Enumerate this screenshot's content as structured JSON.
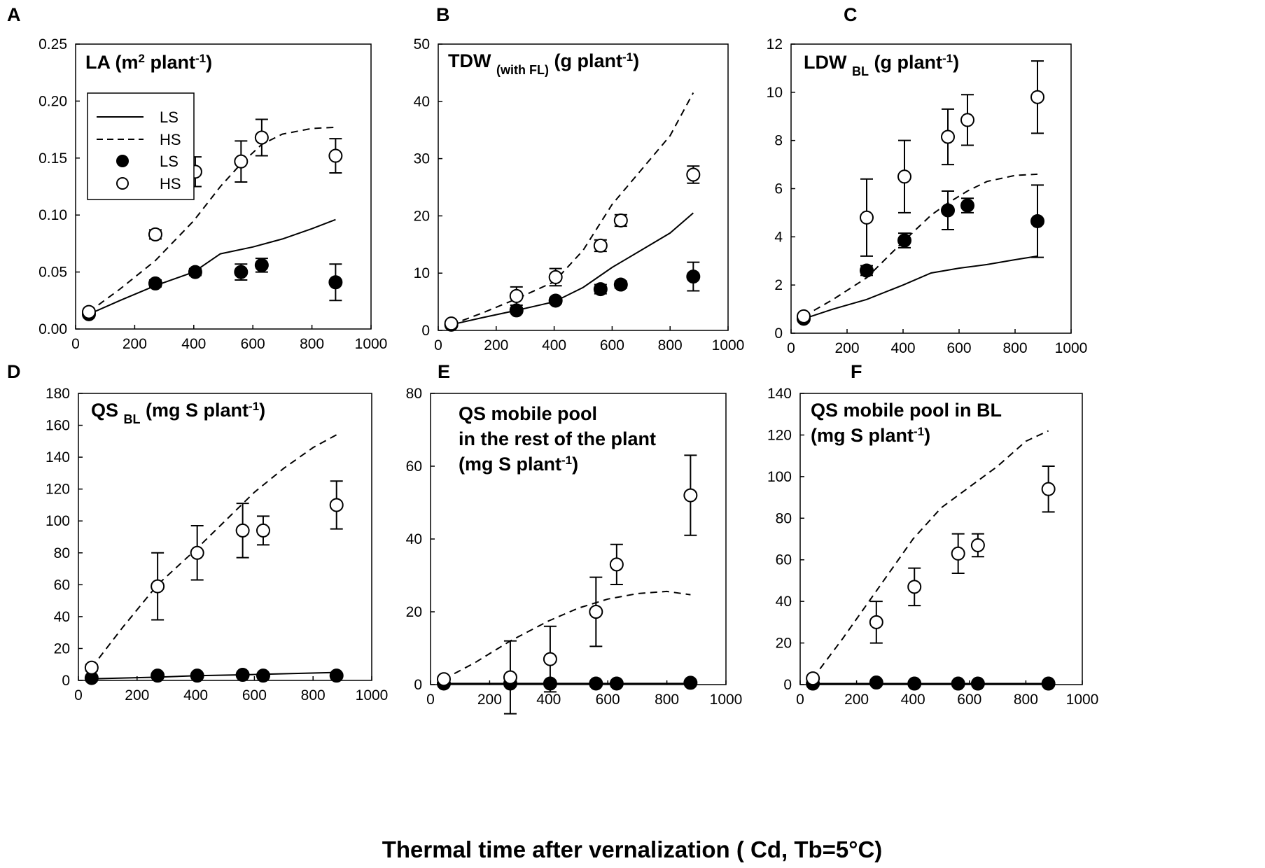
{
  "figure": {
    "xlabel": "Thermal time after vernalization ( Cd, Tb=5°C)"
  },
  "legend": {
    "items": [
      {
        "label": "LS",
        "kind": "line",
        "style": "solid"
      },
      {
        "label": "HS",
        "kind": "line",
        "style": "dashed"
      },
      {
        "label": "LS",
        "kind": "marker",
        "style": "filled"
      },
      {
        "label": "HS",
        "kind": "marker",
        "style": "open"
      }
    ]
  },
  "chart_data": [
    {
      "panel": "A",
      "type": "line",
      "title": "LA (m² plant⁻¹)",
      "xlim": [
        0,
        1000
      ],
      "ylim": [
        0,
        0.25
      ],
      "xticks": [
        "0",
        "200",
        "400",
        "600",
        "800",
        "1000"
      ],
      "yticks": [
        "0.00",
        "0.05",
        "0.10",
        "0.15",
        "0.20",
        "0.25"
      ],
      "lines": [
        {
          "name": "LS",
          "style": "solid",
          "x": [
            45,
            150,
            270,
            400,
            490,
            600,
            700,
            800,
            880
          ],
          "y": [
            0.013,
            0.025,
            0.038,
            0.05,
            0.066,
            0.072,
            0.079,
            0.088,
            0.096
          ]
        },
        {
          "name": "HS",
          "style": "dashed",
          "x": [
            45,
            150,
            270,
            400,
            490,
            560,
            630,
            700,
            800,
            880
          ],
          "y": [
            0.015,
            0.035,
            0.06,
            0.095,
            0.125,
            0.145,
            0.162,
            0.171,
            0.176,
            0.177
          ]
        }
      ],
      "points": [
        {
          "name": "LS",
          "fill": "filled",
          "x": [
            45,
            270,
            405,
            560,
            630,
            880
          ],
          "y": [
            0.013,
            0.04,
            0.05,
            0.05,
            0.056,
            0.041
          ],
          "err": [
            0.002,
            0.003,
            0.003,
            0.007,
            0.006,
            0.016
          ]
        },
        {
          "name": "HS",
          "fill": "open",
          "x": [
            45,
            270,
            405,
            560,
            630,
            880
          ],
          "y": [
            0.015,
            0.083,
            0.138,
            0.147,
            0.168,
            0.152
          ],
          "err": [
            0.002,
            0.004,
            0.013,
            0.018,
            0.016,
            0.015
          ]
        }
      ]
    },
    {
      "panel": "B",
      "type": "line",
      "title": "TDW (with FL) (g plant⁻¹)",
      "xlim": [
        0,
        1000
      ],
      "ylim": [
        0,
        50
      ],
      "xticks": [
        "0",
        "200",
        "400",
        "600",
        "800",
        "1000"
      ],
      "yticks": [
        "0",
        "10",
        "20",
        "30",
        "40",
        "50"
      ],
      "lines": [
        {
          "name": "LS",
          "style": "solid",
          "x": [
            45,
            150,
            270,
            400,
            500,
            600,
            700,
            800,
            880
          ],
          "y": [
            1,
            2.2,
            3.5,
            5,
            7.5,
            11,
            14,
            17,
            20.5
          ]
        },
        {
          "name": "HS",
          "style": "dashed",
          "x": [
            45,
            150,
            270,
            400,
            500,
            600,
            700,
            800,
            880
          ],
          "y": [
            1,
            3,
            5.5,
            8.5,
            14,
            22,
            28,
            34,
            41.5
          ]
        }
      ],
      "points": [
        {
          "name": "LS",
          "fill": "filled",
          "x": [
            45,
            270,
            405,
            560,
            630,
            880
          ],
          "y": [
            1,
            3.5,
            5.2,
            7.2,
            8,
            9.4
          ],
          "err": [
            0.3,
            0.5,
            0.5,
            0.8,
            0.6,
            2.5
          ]
        },
        {
          "name": "HS",
          "fill": "open",
          "x": [
            45,
            270,
            405,
            560,
            630,
            880
          ],
          "y": [
            1.2,
            6,
            9.3,
            14.8,
            19.2,
            27.2
          ],
          "err": [
            0.3,
            1.6,
            1.5,
            1.0,
            1.0,
            1.5
          ]
        }
      ]
    },
    {
      "panel": "C",
      "type": "line",
      "title": "LDW BL (g plant⁻¹)",
      "xlim": [
        0,
        1000
      ],
      "ylim": [
        0,
        12
      ],
      "xticks": [
        "0",
        "200",
        "400",
        "600",
        "800",
        "1000"
      ],
      "yticks": [
        "0",
        "2",
        "4",
        "6",
        "8",
        "10",
        "12"
      ],
      "lines": [
        {
          "name": "LS",
          "style": "solid",
          "x": [
            45,
            150,
            270,
            400,
            500,
            600,
            700,
            800,
            880
          ],
          "y": [
            0.6,
            1.0,
            1.4,
            2.0,
            2.5,
            2.7,
            2.85,
            3.05,
            3.2
          ]
        },
        {
          "name": "HS",
          "style": "dashed",
          "x": [
            45,
            150,
            270,
            400,
            500,
            560,
            630,
            700,
            800,
            880
          ],
          "y": [
            0.7,
            1.4,
            2.3,
            3.8,
            4.9,
            5.4,
            5.9,
            6.3,
            6.55,
            6.6
          ]
        }
      ],
      "points": [
        {
          "name": "LS",
          "fill": "filled",
          "x": [
            45,
            270,
            405,
            560,
            630,
            880
          ],
          "y": [
            0.6,
            2.6,
            3.85,
            5.1,
            5.3,
            4.65
          ],
          "err": [
            0.1,
            0.2,
            0.3,
            0.8,
            0.3,
            1.5
          ]
        },
        {
          "name": "HS",
          "fill": "open",
          "x": [
            45,
            270,
            405,
            560,
            630,
            880
          ],
          "y": [
            0.7,
            4.8,
            6.5,
            8.15,
            8.85,
            9.8
          ],
          "err": [
            0.1,
            1.6,
            1.5,
            1.15,
            1.05,
            1.5
          ]
        }
      ]
    },
    {
      "panel": "D",
      "type": "line",
      "title": "QS BL (mg S plant⁻¹)",
      "xlim": [
        0,
        1000
      ],
      "ylim": [
        0,
        180
      ],
      "xticks": [
        "0",
        "200",
        "400",
        "600",
        "800",
        "1000"
      ],
      "yticks": [
        "0",
        "20",
        "40",
        "60",
        "80",
        "100",
        "120",
        "140",
        "160",
        "180"
      ],
      "lines": [
        {
          "name": "LS",
          "style": "solid",
          "x": [
            45,
            270,
            405,
            560,
            630,
            880
          ],
          "y": [
            1,
            2,
            3,
            3.5,
            3.8,
            5
          ]
        },
        {
          "name": "HS",
          "style": "dashed",
          "x": [
            45,
            150,
            270,
            400,
            500,
            600,
            700,
            800,
            880
          ],
          "y": [
            8,
            33,
            60,
            82,
            100,
            118,
            133,
            146,
            154
          ]
        }
      ],
      "points": [
        {
          "name": "LS",
          "fill": "filled",
          "x": [
            45,
            270,
            405,
            560,
            630,
            880
          ],
          "y": [
            1.5,
            3,
            3,
            3.5,
            3,
            3
          ],
          "err": [
            0,
            0,
            0,
            0,
            0,
            0
          ]
        },
        {
          "name": "HS",
          "fill": "open",
          "x": [
            45,
            270,
            405,
            560,
            630,
            880
          ],
          "y": [
            8,
            59,
            80,
            94,
            94,
            110
          ],
          "err": [
            2,
            21,
            17,
            17,
            9,
            15
          ]
        }
      ]
    },
    {
      "panel": "E",
      "type": "line",
      "title": "QS  mobile pool in the rest of the plant (mg S plant⁻¹)",
      "title_lines": [
        "QS  mobile pool",
        "in the rest of the plant",
        "(mg S plant⁻¹)"
      ],
      "xlim": [
        0,
        1000
      ],
      "ylim": [
        0,
        80
      ],
      "xticks": [
        "0",
        "200",
        "400",
        "600",
        "800",
        "1000"
      ],
      "yticks": [
        "0",
        "20",
        "40",
        "60",
        "80"
      ],
      "lines": [
        {
          "name": "LS",
          "style": "solid",
          "x": [
            45,
            880
          ],
          "y": [
            0.3,
            0.3
          ]
        },
        {
          "name": "HS",
          "style": "dashed",
          "x": [
            45,
            150,
            270,
            400,
            500,
            600,
            700,
            800,
            880
          ],
          "y": [
            1.5,
            6,
            12,
            17.5,
            21,
            23.5,
            25,
            25.6,
            24.7
          ]
        }
      ],
      "points": [
        {
          "name": "LS",
          "fill": "filled",
          "x": [
            45,
            270,
            405,
            560,
            630,
            880
          ],
          "y": [
            0.3,
            0.3,
            0.3,
            0.3,
            0.3,
            0.5
          ],
          "err": [
            0,
            0,
            0,
            0,
            0,
            0
          ]
        },
        {
          "name": "HS",
          "fill": "open",
          "x": [
            45,
            270,
            405,
            560,
            630,
            880
          ],
          "y": [
            1.5,
            2,
            7,
            20,
            33,
            52
          ],
          "err": [
            0.5,
            10,
            9,
            9.5,
            5.5,
            11
          ]
        }
      ]
    },
    {
      "panel": "F",
      "type": "line",
      "title": "QS  mobile pool in BL (mg S plant⁻¹)",
      "title_lines": [
        "QS  mobile pool in BL",
        "(mg S plant⁻¹)"
      ],
      "xlim": [
        0,
        1000
      ],
      "ylim": [
        0,
        140
      ],
      "xticks": [
        "0",
        "200",
        "400",
        "600",
        "800",
        "1000"
      ],
      "yticks": [
        "0",
        "20",
        "40",
        "60",
        "80",
        "100",
        "120",
        "140"
      ],
      "lines": [
        {
          "name": "LS",
          "style": "solid",
          "x": [
            45,
            880
          ],
          "y": [
            0.5,
            0.5
          ]
        },
        {
          "name": "HS",
          "style": "dashed",
          "x": [
            45,
            150,
            270,
            400,
            500,
            600,
            700,
            800,
            880
          ],
          "y": [
            3,
            22,
            45,
            70,
            85,
            95,
            105,
            117,
            122
          ]
        }
      ],
      "points": [
        {
          "name": "LS",
          "fill": "filled",
          "x": [
            45,
            270,
            405,
            560,
            630,
            880
          ],
          "y": [
            0.5,
            1,
            0.5,
            0.5,
            0.5,
            0.5
          ],
          "err": [
            0,
            0,
            0,
            0,
            0,
            0
          ]
        },
        {
          "name": "HS",
          "fill": "open",
          "x": [
            45,
            270,
            405,
            560,
            630,
            880
          ],
          "y": [
            3,
            30,
            47,
            63,
            67,
            94
          ],
          "err": [
            1,
            10,
            9,
            9.5,
            5.5,
            11
          ]
        }
      ]
    }
  ]
}
